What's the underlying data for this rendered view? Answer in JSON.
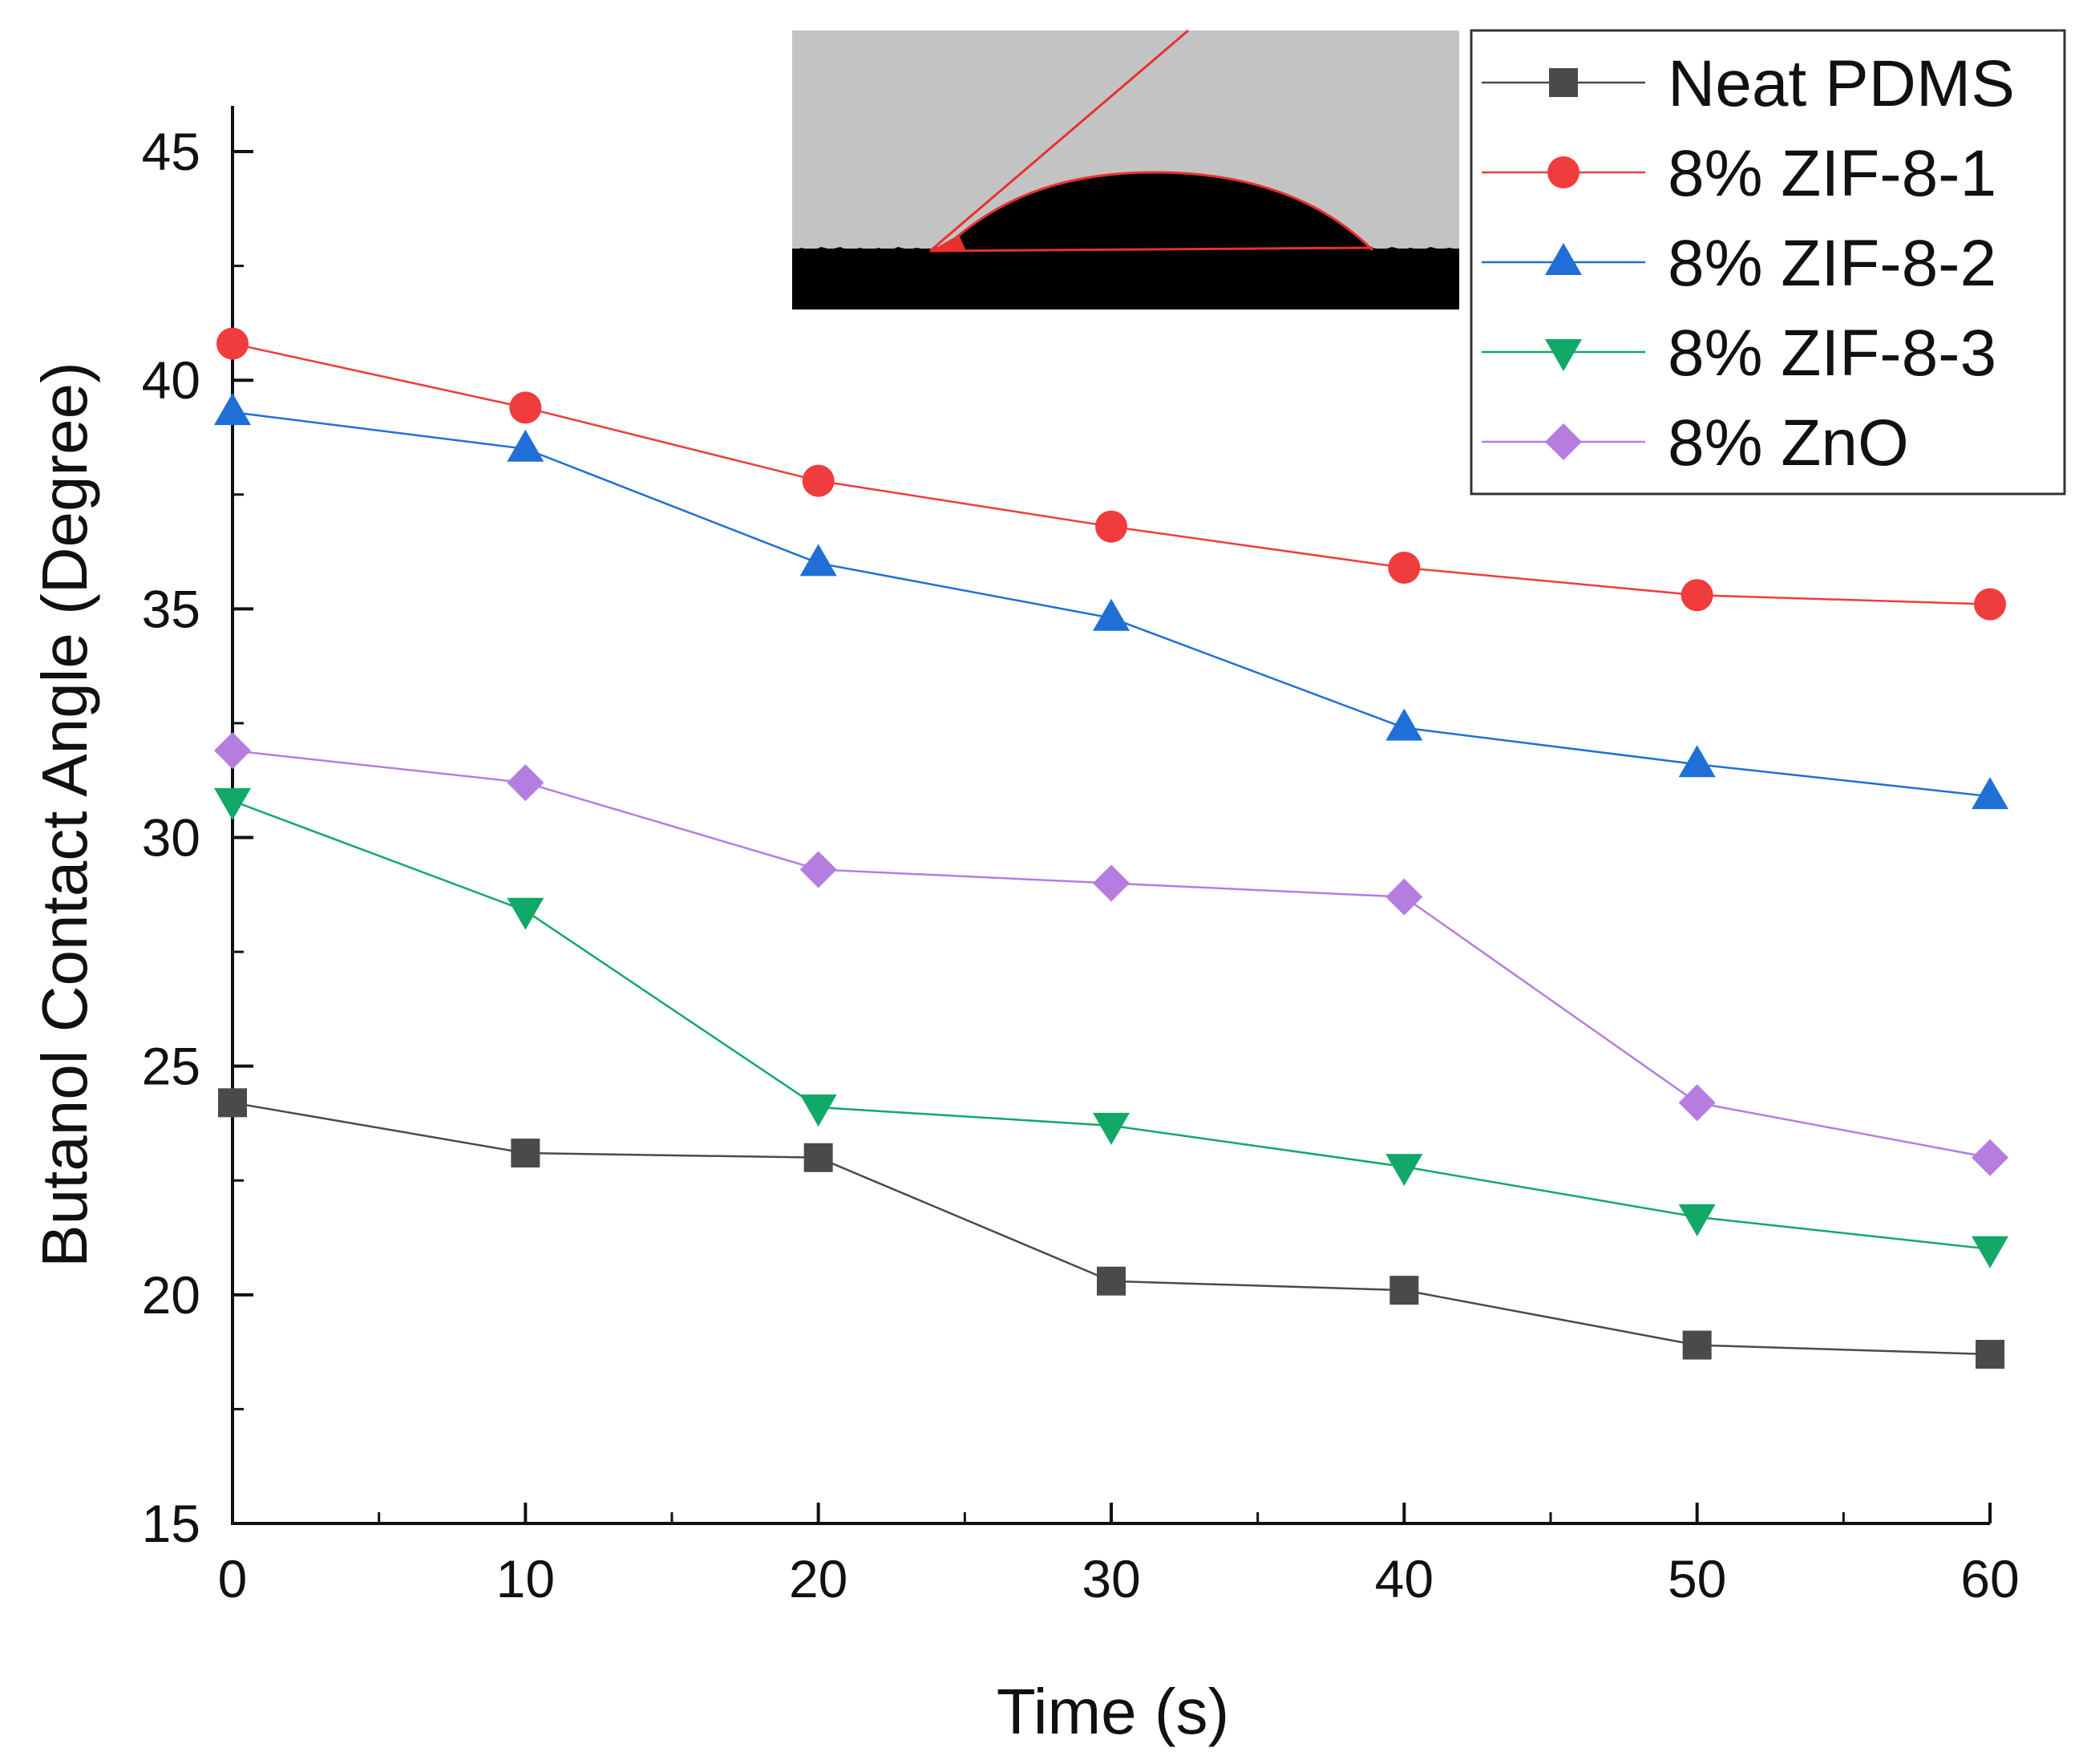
{
  "chart_data": {
    "type": "line",
    "title": "",
    "xlabel": "Time (s)",
    "ylabel": "Butanol Contact Angle (Degree)",
    "xlim": [
      0,
      60
    ],
    "ylim": [
      15,
      46
    ],
    "x": [
      0,
      10,
      20,
      30,
      40,
      50,
      60
    ],
    "xticks": [
      0,
      10,
      20,
      30,
      40,
      50,
      60
    ],
    "yticks": [
      15,
      20,
      25,
      30,
      35,
      40,
      45
    ],
    "grid": false,
    "legend_position": "top-right",
    "inset": "droplet contact angle photo",
    "series": [
      {
        "name": "Neat PDMS",
        "color": "#4a4a4a",
        "marker": "square",
        "values": [
          24.2,
          23.1,
          23.0,
          20.3,
          20.1,
          18.9,
          18.7
        ]
      },
      {
        "name": "8% ZIF-8-1",
        "color": "#f03c3c",
        "marker": "circle",
        "values": [
          40.8,
          39.4,
          37.8,
          36.8,
          35.9,
          35.3,
          35.1
        ]
      },
      {
        "name": "8% ZIF-8-2",
        "color": "#1f6fd6",
        "marker": "triangle-up",
        "values": [
          39.3,
          38.5,
          36.0,
          34.8,
          32.4,
          31.6,
          30.9
        ]
      },
      {
        "name": "8% ZIF-8-3",
        "color": "#12a867",
        "marker": "triangle-down",
        "values": [
          30.8,
          28.4,
          24.1,
          23.7,
          22.8,
          21.7,
          21.0
        ]
      },
      {
        "name": "8% ZnO",
        "color": "#b57de0",
        "marker": "diamond",
        "values": [
          31.9,
          31.2,
          29.3,
          29.0,
          28.7,
          24.2,
          23.0
        ]
      }
    ]
  }
}
